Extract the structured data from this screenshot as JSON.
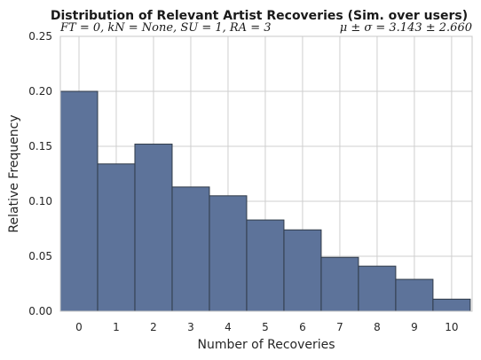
{
  "chart_data": {
    "type": "bar",
    "title": "Distribution of Relevant Artist Recoveries (Sim. over users)",
    "subtitle_left": "FT = 0, kN = None, SU = 1, RA = 3",
    "subtitle_right": "μ ± σ = 3.143 ± 2.660",
    "xlabel": "Number of Recoveries",
    "ylabel": "Relative Frequency",
    "categories": [
      "0",
      "1",
      "2",
      "3",
      "4",
      "5",
      "6",
      "7",
      "8",
      "9",
      "10"
    ],
    "values": [
      0.2,
      0.134,
      0.152,
      0.113,
      0.105,
      0.083,
      0.074,
      0.049,
      0.041,
      0.029,
      0.011
    ],
    "ylim": [
      0,
      0.25
    ],
    "yticks": [
      "0.00",
      "0.05",
      "0.10",
      "0.15",
      "0.20",
      "0.25"
    ],
    "bar_color": "#5d739a",
    "grid": true
  }
}
